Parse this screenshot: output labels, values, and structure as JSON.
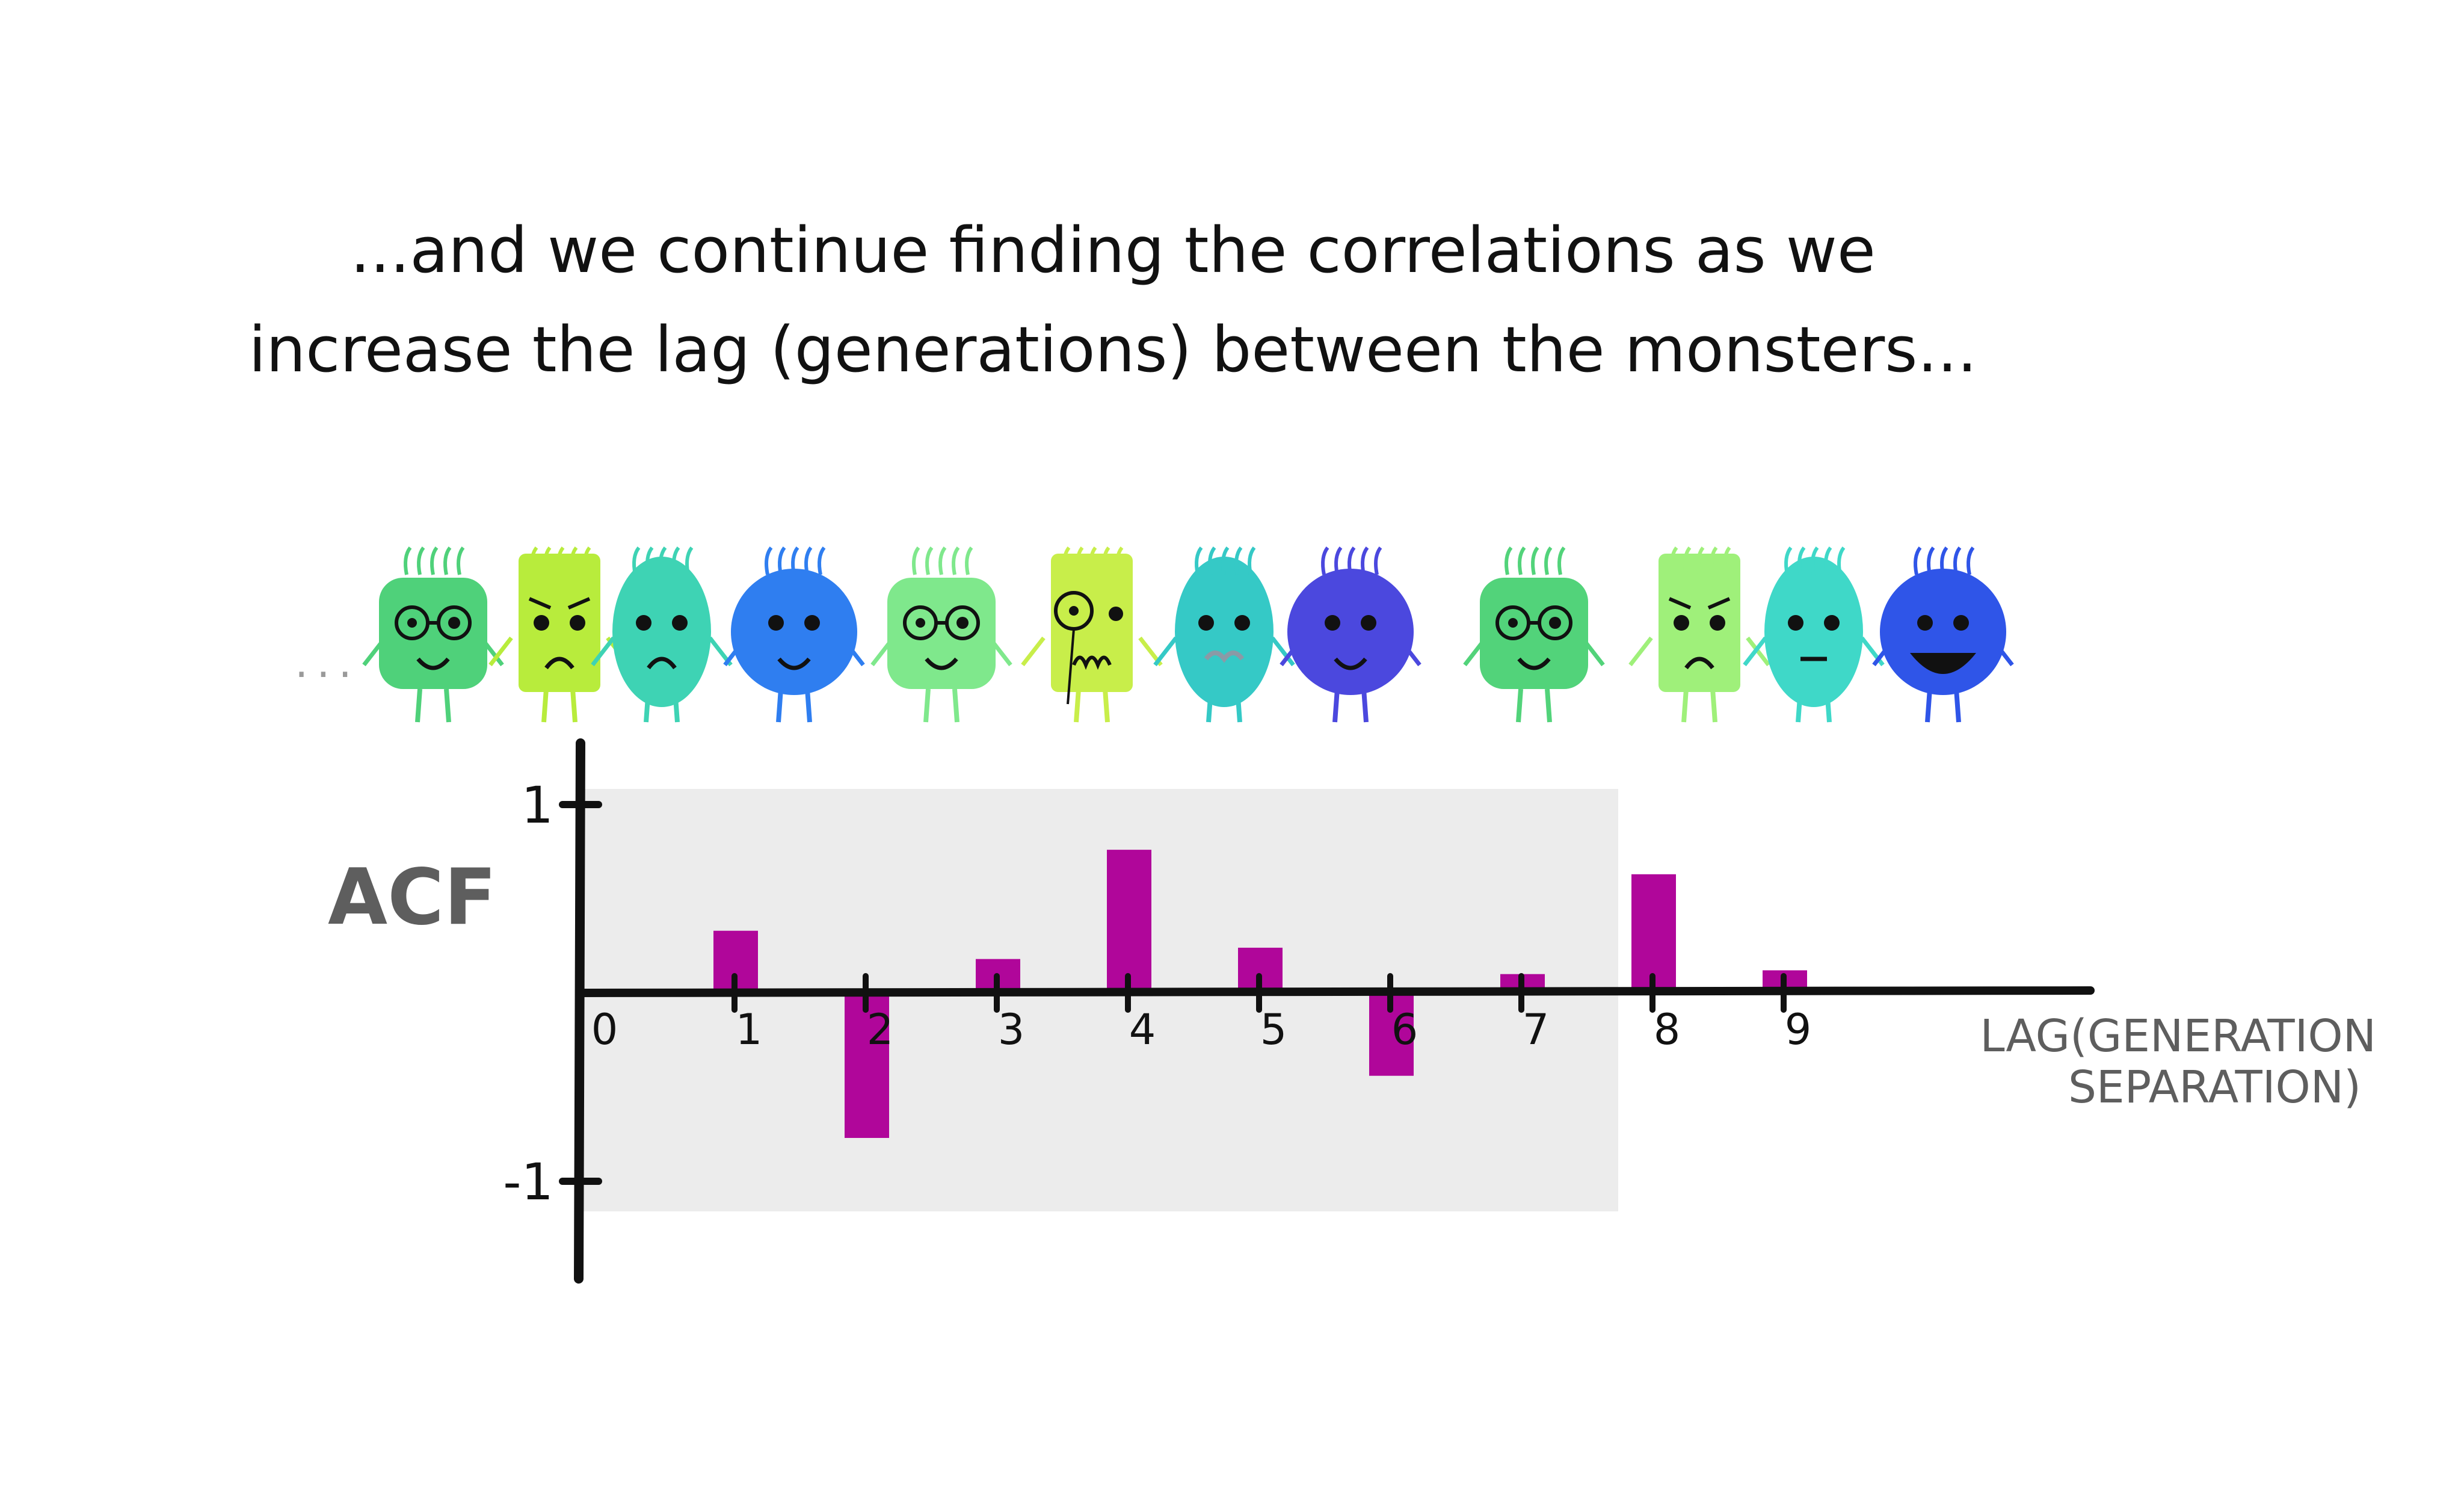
{
  "caption": {
    "line1": "...and we continue finding the correlations as we",
    "line2": "increase the lag (generations) between the monsters..."
  },
  "monsters_ellipsis": "...",
  "monsters": [
    {
      "shape": "square",
      "color": "#4fd17a",
      "face": "glasses"
    },
    {
      "shape": "rect",
      "color": "#b8ec3c",
      "face": "grumpy"
    },
    {
      "shape": "teardrop",
      "color": "#3ed3b4",
      "face": "sad"
    },
    {
      "shape": "round",
      "color": "#2f7ef0",
      "face": "happy"
    },
    {
      "shape": "square",
      "color": "#7fe88c",
      "face": "glasses"
    },
    {
      "shape": "rect",
      "color": "#c8ee4a",
      "face": "monocle"
    },
    {
      "shape": "teardrop",
      "color": "#35c9c6",
      "face": "mustache"
    },
    {
      "shape": "round",
      "color": "#4b48de",
      "face": "happy"
    },
    {
      "shape": "square",
      "color": "#52d37a",
      "face": "glasses"
    },
    {
      "shape": "rect",
      "color": "#9ff07a",
      "face": "grumpy"
    },
    {
      "shape": "teardrop",
      "color": "#3fd8c8",
      "face": "neutral"
    },
    {
      "shape": "round",
      "color": "#2f55e8",
      "face": "bigsmile"
    }
  ],
  "chart_data": {
    "type": "bar",
    "ylabel": "ACF",
    "xlabel_line1": "LAG(GENERATION",
    "xlabel_line2": "SEPARATION)",
    "categories": [
      "0",
      "1",
      "2",
      "3",
      "4",
      "5",
      "6",
      "7",
      "8",
      "9"
    ],
    "values": [
      null,
      0.33,
      -0.77,
      0.18,
      0.76,
      0.24,
      -0.44,
      0.1,
      0.63,
      0.12
    ],
    "ylim": [
      -1,
      1
    ],
    "yticks": [
      1,
      -1
    ],
    "ytick_labels": [
      "1",
      "-1"
    ],
    "bar_color": "#b0069a",
    "axis_color": "#111111",
    "shaded_region_color": "#ececec"
  }
}
